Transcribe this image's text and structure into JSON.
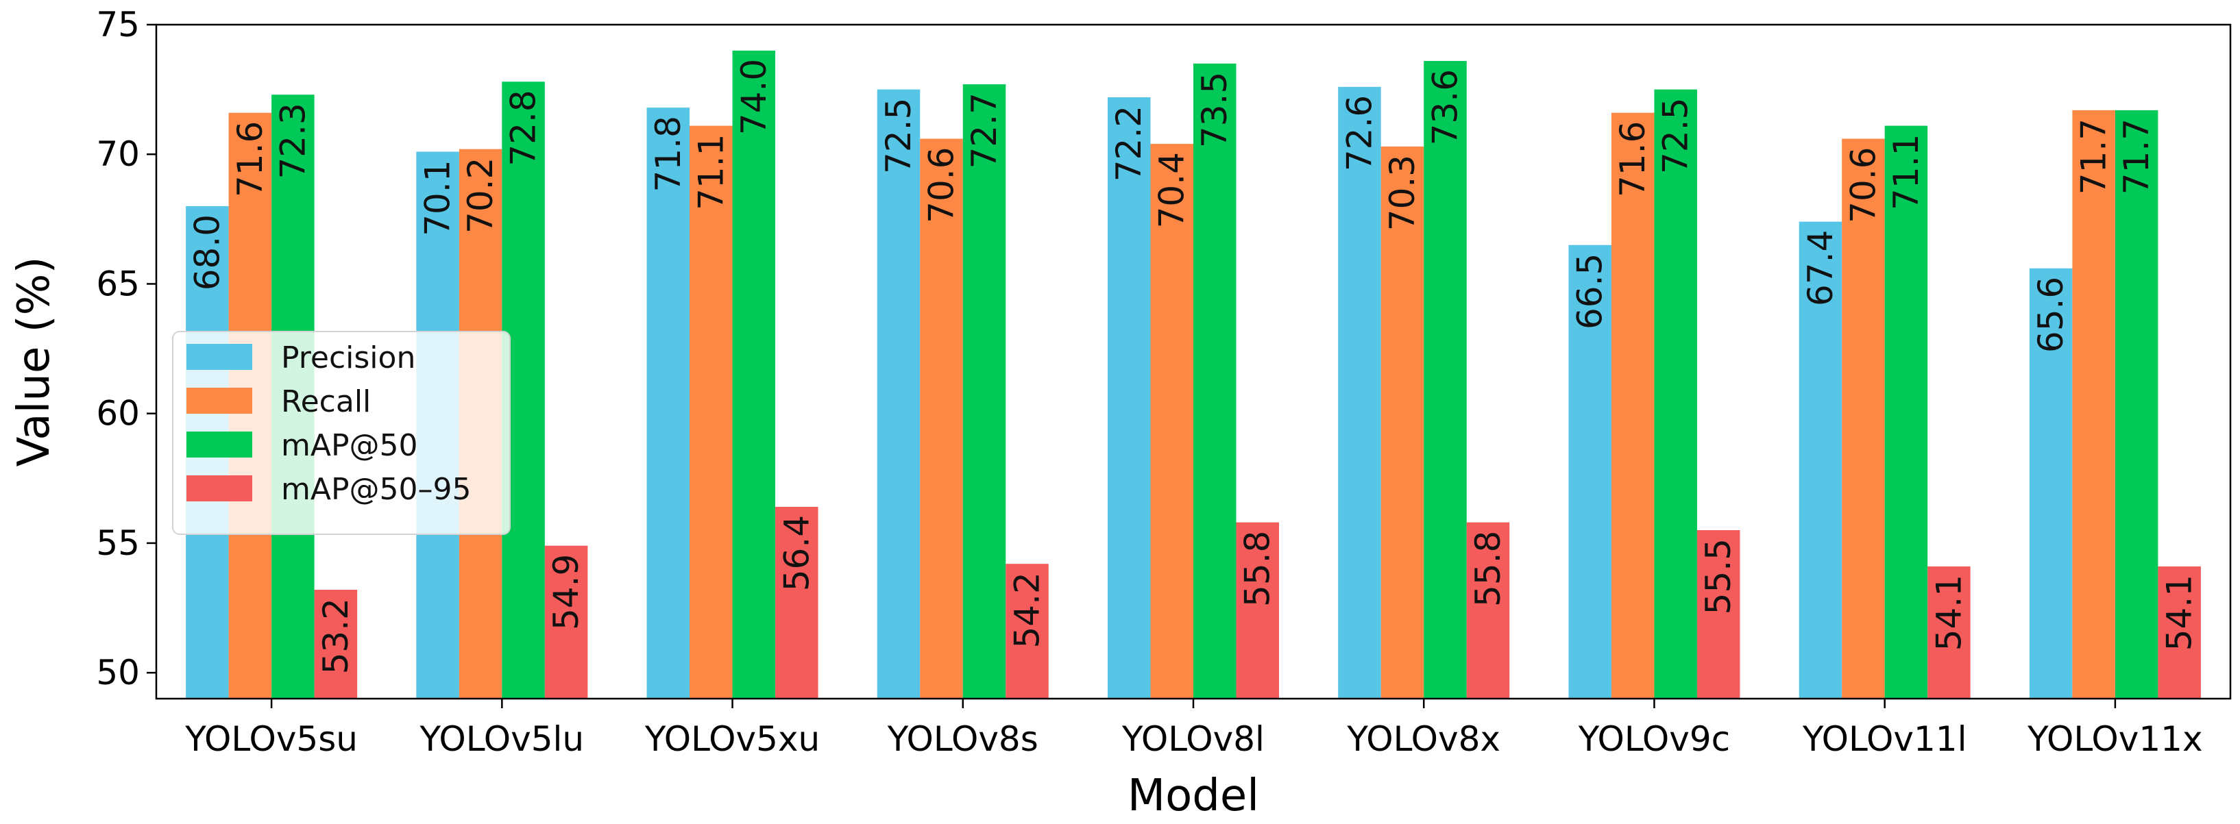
{
  "chart_data": {
    "type": "bar",
    "xlabel": "Model",
    "ylabel": "Value (%)",
    "ylim": [
      49,
      75
    ],
    "yticks": [
      50,
      55,
      60,
      65,
      70,
      75
    ],
    "grid": false,
    "legend_position": "center-left",
    "categories": [
      "YOLOv5su",
      "YOLOv5lu",
      "YOLOv5xu",
      "YOLOv8s",
      "YOLOv8l",
      "YOLOv8x",
      "YOLOv9c",
      "YOLOv11l",
      "YOLOv11x"
    ],
    "series": [
      {
        "name": "Precision",
        "color": "#56c5e6",
        "values": [
          68.0,
          70.1,
          71.8,
          72.5,
          72.2,
          72.6,
          66.5,
          67.4,
          65.6
        ],
        "labels": [
          "68.0",
          "70.1",
          "71.8",
          "72.5",
          "72.2",
          "72.6",
          "66.5",
          "67.4",
          "65.6"
        ]
      },
      {
        "name": "Recall",
        "color": "#fd8845",
        "values": [
          71.6,
          70.2,
          71.1,
          70.6,
          70.4,
          70.3,
          71.6,
          70.6,
          71.7
        ],
        "labels": [
          "71.6",
          "70.2",
          "71.1",
          "70.6",
          "70.4",
          "70.3",
          "71.6",
          "70.6",
          "71.7"
        ]
      },
      {
        "name": "mAP@50",
        "color": "#00c957",
        "values": [
          72.3,
          72.8,
          74.0,
          72.7,
          73.5,
          73.6,
          72.5,
          71.1,
          71.7
        ],
        "labels": [
          "72.3",
          "72.8",
          "74.0",
          "72.7",
          "73.5",
          "73.6",
          "72.5",
          "71.1",
          "71.7"
        ]
      },
      {
        "name": "mAP@50–95",
        "color": "#f45c5c",
        "values": [
          53.2,
          54.9,
          56.4,
          54.2,
          55.8,
          55.8,
          55.5,
          54.1,
          54.1
        ],
        "labels": [
          "53.2",
          "54.9",
          "56.4",
          "54.2",
          "55.8",
          "55.8",
          "55.5",
          "54.1",
          "54.1"
        ]
      }
    ]
  }
}
